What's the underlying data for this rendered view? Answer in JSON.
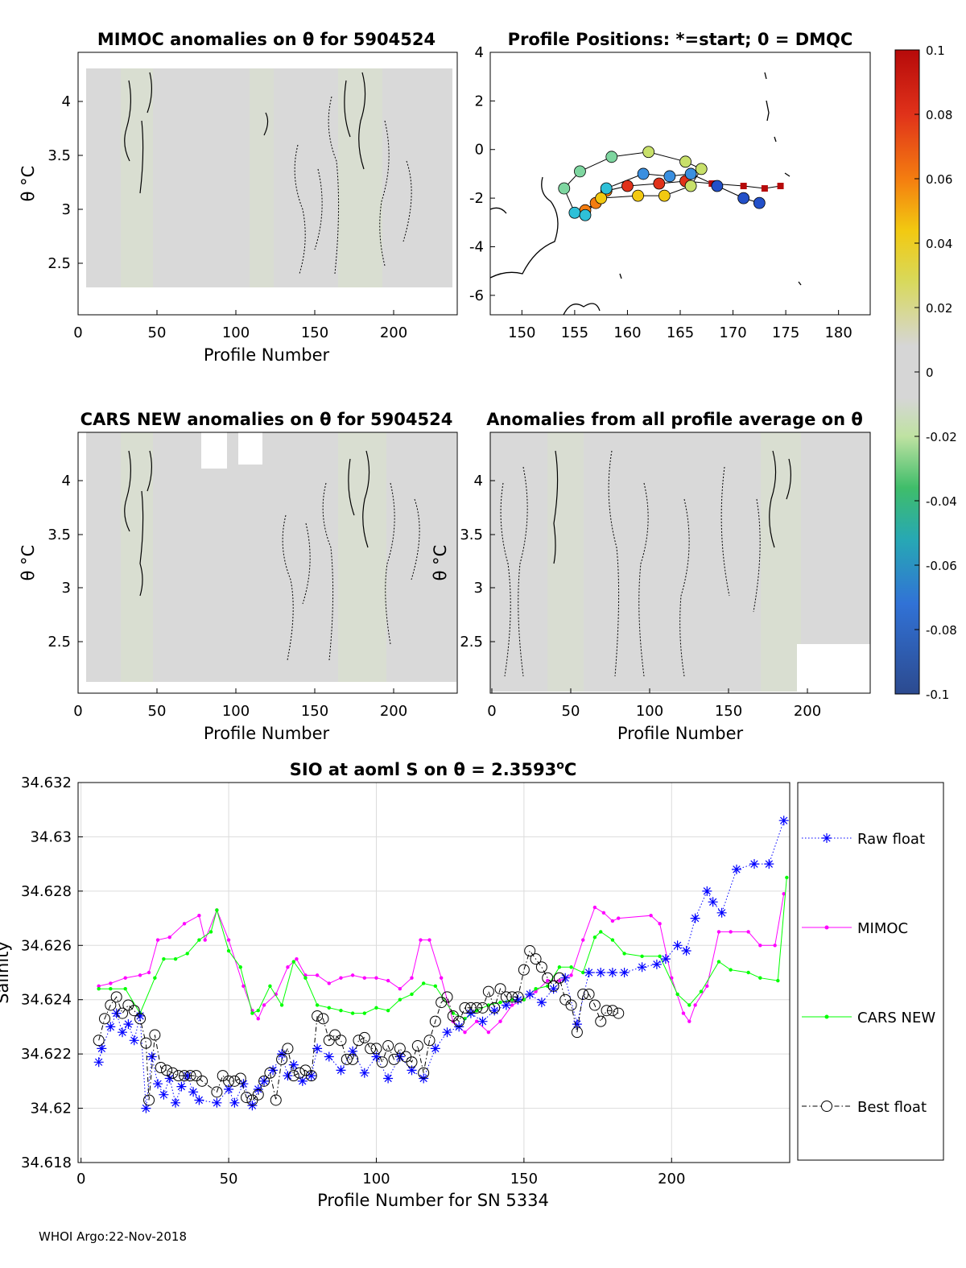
{
  "colors": {
    "anomaly_field": "#d9d9d9",
    "anomaly_tint": "#d9e8c4",
    "raw_float": "#0000ff",
    "mimoc": "#ff00ff",
    "cars_new": "#00ff00",
    "best_float": "#000000",
    "axis": "#000000",
    "grid": "#dcdcdc"
  },
  "panels": {
    "mimoc": {
      "title": "MIMOC anomalies on θ  for 5904524",
      "xlabel": "Profile Number",
      "ylabel": "θ °C"
    },
    "positions": {
      "title": "Profile Positions: *=start; 0 = DMQC"
    },
    "cars": {
      "title": "CARS NEW anomalies on θ for 5904524",
      "xlabel": "Profile Number",
      "ylabel": "θ °C"
    },
    "allavg": {
      "title": "Anomalies from all profile average on θ",
      "xlabel": "Profile Number",
      "ylabel": "θ °C"
    }
  },
  "colorbar": {
    "ticks": [
      "0.1",
      "0.08",
      "0.06",
      "0.04",
      "0.02",
      "0",
      "-0.02",
      "-0.04",
      "-0.06",
      "-0.08",
      "-0.1"
    ]
  },
  "footer": "WHOI Argo:22-Nov-2018",
  "chart_data": [
    {
      "type": "heatmap",
      "title": "MIMOC anomalies on θ  for 5904524",
      "xlabel": "Profile Number",
      "ylabel": "θ °C",
      "xlim": [
        0,
        240
      ],
      "ylim": [
        2.05,
        4.45
      ],
      "xticks": [
        "0",
        "50",
        "100",
        "150",
        "200"
      ],
      "yticks": [
        "2.5",
        "3",
        "3.5",
        "4"
      ],
      "colorbar": {
        "min": -0.1,
        "max": 0.1
      }
    },
    {
      "type": "scatter",
      "title": "Profile Positions: *=start; 0 = DMQC",
      "xlim": [
        147,
        183
      ],
      "ylim": [
        -6.8,
        4
      ],
      "xticks": [
        "150",
        "155",
        "160",
        "165",
        "170",
        "175",
        "180"
      ],
      "yticks": [
        "4",
        "2",
        "0",
        "-2",
        "-4",
        "-6"
      ],
      "track": {
        "lon": [
          174.5,
          173.0,
          171.0,
          168.0,
          165.5,
          163.0,
          160.0,
          158.0,
          157.0,
          156.0,
          157.5,
          161.0,
          163.5,
          166.0,
          167.0,
          165.5,
          162.0,
          158.5,
          155.5,
          154.0,
          155.0,
          156.0,
          158.0,
          161.5,
          164.0,
          166.0,
          168.5,
          171.0,
          172.5
        ],
        "lat": [
          -1.5,
          -1.6,
          -1.5,
          -1.4,
          -1.3,
          -1.4,
          -1.5,
          -1.7,
          -2.2,
          -2.5,
          -2.0,
          -1.9,
          -1.9,
          -1.5,
          -0.8,
          -0.5,
          -0.1,
          -0.3,
          -0.9,
          -1.6,
          -2.6,
          -2.7,
          -1.6,
          -1.0,
          -1.1,
          -1.0,
          -1.5,
          -2.0,
          -2.2
        ],
        "note": "colour of each position follows the colorbar scale"
      }
    },
    {
      "type": "heatmap",
      "title": "CARS NEW anomalies on θ for 5904524",
      "xlabel": "Profile Number",
      "ylabel": "θ °C",
      "xlim": [
        0,
        240
      ],
      "ylim": [
        2.05,
        4.45
      ],
      "xticks": [
        "0",
        "50",
        "100",
        "150",
        "200"
      ],
      "yticks": [
        "2.5",
        "3",
        "3.5",
        "4"
      ]
    },
    {
      "type": "heatmap",
      "title": "Anomalies from all profile average on θ",
      "xlabel": "Profile Number",
      "ylabel": "θ °C",
      "xlim": [
        0,
        240
      ],
      "ylim": [
        2.05,
        4.45
      ],
      "xticks": [
        "0",
        "50",
        "100",
        "150",
        "200"
      ],
      "yticks": [
        "2.5",
        "3",
        "3.5",
        "4"
      ]
    },
    {
      "type": "line",
      "title": "SIO at aoml S on θ = 2.3593°C",
      "title_main": "SIO at aoml S on θ = 2.3593",
      "title_sup": "o",
      "title_unit": "C",
      "xlabel": "Profile Number for SN 5334",
      "ylabel": "Salinity",
      "xlim": [
        -1,
        240
      ],
      "ylim": [
        34.618,
        34.632
      ],
      "xticks": [
        "0",
        "50",
        "100",
        "150",
        "200"
      ],
      "yticks": [
        "34.618",
        "34.62",
        "34.622",
        "34.624",
        "34.626",
        "34.628",
        "34.63",
        "34.632"
      ],
      "legend_position": "right",
      "series": [
        {
          "name": "Raw float",
          "style": "dotted-asterisk",
          "x": [
            6,
            7,
            10,
            12,
            14,
            16,
            18,
            20,
            22,
            24,
            26,
            28,
            30,
            32,
            34,
            36,
            38,
            40,
            46,
            50,
            52,
            55,
            58,
            60,
            62,
            65,
            68,
            70,
            72,
            75,
            78,
            80,
            84,
            88,
            92,
            96,
            100,
            104,
            108,
            112,
            116,
            120,
            124,
            128,
            132,
            136,
            140,
            144,
            148,
            152,
            156,
            160,
            164,
            168,
            172,
            176,
            180,
            184,
            190,
            195,
            198,
            202,
            205,
            208,
            212,
            214,
            217,
            222,
            228,
            233,
            238
          ],
          "y": [
            34.6217,
            34.6222,
            34.623,
            34.6235,
            34.6228,
            34.6231,
            34.6225,
            34.6234,
            34.62,
            34.6219,
            34.6209,
            34.6205,
            34.6211,
            34.6202,
            34.6208,
            34.6212,
            34.6206,
            34.6203,
            34.6202,
            34.6207,
            34.6202,
            34.6209,
            34.6201,
            34.6207,
            34.621,
            34.6214,
            34.622,
            34.6212,
            34.6216,
            34.621,
            34.6212,
            34.6222,
            34.6219,
            34.6214,
            34.6221,
            34.6213,
            34.6219,
            34.6211,
            34.6219,
            34.6214,
            34.6211,
            34.6222,
            34.6228,
            34.623,
            34.6235,
            34.6232,
            34.6236,
            34.6238,
            34.624,
            34.6242,
            34.6239,
            34.6244,
            34.6248,
            34.6231,
            34.625,
            34.625,
            34.625,
            34.625,
            34.6252,
            34.6253,
            34.6255,
            34.626,
            34.6258,
            34.627,
            34.628,
            34.6276,
            34.6272,
            34.6288,
            34.629,
            34.629,
            34.6306
          ]
        },
        {
          "name": "MIMOC",
          "style": "line-dot",
          "x": [
            6,
            10,
            15,
            20,
            23,
            26,
            30,
            35,
            40,
            42,
            46,
            50,
            55,
            58,
            60,
            62,
            66,
            70,
            73,
            76,
            80,
            84,
            88,
            92,
            96,
            100,
            104,
            108,
            112,
            115,
            118,
            122,
            126,
            130,
            134,
            138,
            142,
            146,
            150,
            154,
            158,
            162,
            166,
            170,
            174,
            177,
            180,
            182,
            193,
            196,
            200,
            204,
            206,
            208,
            212,
            216,
            220,
            226,
            230,
            235,
            238
          ],
          "y": [
            34.6245,
            34.6246,
            34.6248,
            34.6249,
            34.625,
            34.6262,
            34.6263,
            34.6268,
            34.6271,
            34.6262,
            34.6273,
            34.6262,
            34.6245,
            34.6236,
            34.6233,
            34.6238,
            34.6242,
            34.6252,
            34.6255,
            34.6249,
            34.6249,
            34.6246,
            34.6248,
            34.6249,
            34.6248,
            34.6248,
            34.6247,
            34.6244,
            34.6248,
            34.6262,
            34.6262,
            34.6248,
            34.6232,
            34.6228,
            34.6232,
            34.6228,
            34.6232,
            34.6238,
            34.624,
            34.6243,
            34.6247,
            34.6247,
            34.6249,
            34.6262,
            34.6274,
            34.6272,
            34.6269,
            34.627,
            34.6271,
            34.6268,
            34.6248,
            34.6235,
            34.6232,
            34.6238,
            34.6245,
            34.6265,
            34.6265,
            34.6265,
            34.626,
            34.626,
            34.6279
          ]
        },
        {
          "name": "CARS NEW",
          "style": "line-dot",
          "x": [
            6,
            10,
            15,
            20,
            25,
            28,
            32,
            36,
            40,
            44,
            46,
            50,
            54,
            58,
            60,
            64,
            68,
            72,
            76,
            80,
            84,
            88,
            92,
            96,
            100,
            104,
            108,
            112,
            116,
            120,
            126,
            130,
            134,
            138,
            142,
            146,
            150,
            154,
            158,
            162,
            166,
            170,
            174,
            176,
            180,
            184,
            190,
            196,
            202,
            206,
            210,
            216,
            220,
            226,
            230,
            236,
            239
          ],
          "y": [
            34.6244,
            34.6244,
            34.6244,
            34.6235,
            34.6248,
            34.6255,
            34.6255,
            34.6257,
            34.6262,
            34.6265,
            34.6273,
            34.6258,
            34.6252,
            34.6235,
            34.6236,
            34.6245,
            34.6238,
            34.6254,
            34.6248,
            34.6238,
            34.6237,
            34.6236,
            34.6235,
            34.6235,
            34.6237,
            34.6236,
            34.624,
            34.6242,
            34.6246,
            34.6245,
            34.6235,
            34.6233,
            34.6236,
            34.6238,
            34.6239,
            34.624,
            34.624,
            34.6244,
            34.6245,
            34.6252,
            34.6252,
            34.625,
            34.6263,
            34.6265,
            34.6262,
            34.6257,
            34.6256,
            34.6256,
            34.6242,
            34.6238,
            34.6243,
            34.6254,
            34.6251,
            34.625,
            34.6248,
            34.6247,
            34.6285
          ]
        },
        {
          "name": "Best float",
          "style": "dashdot-circle",
          "x": [
            6,
            8,
            10,
            12,
            14,
            16,
            18,
            20,
            22,
            23,
            25,
            27,
            29,
            31,
            33,
            35,
            37,
            39,
            41,
            46,
            48,
            50,
            52,
            54,
            56,
            58,
            60,
            62,
            64,
            66,
            68,
            70,
            72,
            74,
            76,
            78,
            80,
            82,
            84,
            86,
            88,
            90,
            92,
            94,
            96,
            98,
            100,
            102,
            104,
            106,
            108,
            110,
            112,
            114,
            116,
            118,
            120,
            122,
            124,
            126,
            128,
            130,
            132,
            134,
            136,
            138,
            140,
            142,
            144,
            146,
            148,
            150,
            152,
            154,
            156,
            158,
            160,
            162,
            164,
            166,
            168,
            170,
            172,
            174,
            176,
            178,
            180,
            182
          ],
          "y": [
            34.6225,
            34.6233,
            34.6238,
            34.6241,
            34.6235,
            34.6238,
            34.6236,
            34.6233,
            34.6224,
            34.6203,
            34.6227,
            34.6215,
            34.6214,
            34.6213,
            34.6212,
            34.6212,
            34.6212,
            34.6212,
            34.621,
            34.6206,
            34.6212,
            34.621,
            34.621,
            34.6211,
            34.6204,
            34.6203,
            34.6205,
            34.621,
            34.6213,
            34.6203,
            34.6218,
            34.6222,
            34.6212,
            34.6213,
            34.6214,
            34.6212,
            34.6234,
            34.6233,
            34.6225,
            34.6227,
            34.6225,
            34.6218,
            34.6218,
            34.6225,
            34.6226,
            34.6222,
            34.6222,
            34.6217,
            34.6223,
            34.6218,
            34.6222,
            34.6219,
            34.6217,
            34.6223,
            34.6213,
            34.6225,
            34.6232,
            34.6239,
            34.6241,
            34.6234,
            34.6232,
            34.6237,
            34.6237,
            34.6237,
            34.6237,
            34.6243,
            34.6237,
            34.6244,
            34.6241,
            34.6241,
            34.6241,
            34.6251,
            34.6258,
            34.6255,
            34.6252,
            34.6248,
            34.6245,
            34.6248,
            34.624,
            34.6238,
            34.6228,
            34.6242,
            34.6242,
            34.6238,
            34.6232,
            34.6236,
            34.6236,
            34.6235
          ]
        }
      ]
    }
  ]
}
